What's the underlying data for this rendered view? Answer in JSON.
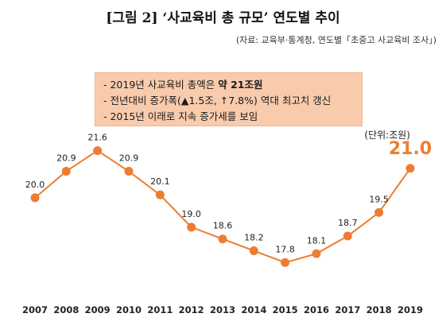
{
  "title": "[그림 2] ‘사교육비 총 규모’ 연도별 추이",
  "source": "(자료: 교육부·통계청, 연도별「초중고 사교육비 조사」)",
  "notes": {
    "line1_prefix": "- 2019년 사교육비 총액은 ",
    "line1_bold": "약 21조원",
    "line2": "- 전년대비 증가폭(▲1.5조, ↑7.8%) 역대 최고치 갱신",
    "line3": "- 2015년 이래로 지속 증가세를 보임"
  },
  "unit": "(단위:조원)",
  "colors": {
    "series": "#ed7d31",
    "note_bg": "#f8cbad"
  },
  "chart_data": {
    "type": "line",
    "categories": [
      "2007",
      "2008",
      "2009",
      "2010",
      "2011",
      "2012",
      "2013",
      "2014",
      "2015",
      "2016",
      "2017",
      "2018",
      "2019"
    ],
    "values": [
      20.0,
      20.9,
      21.6,
      20.9,
      20.1,
      19.0,
      18.6,
      18.2,
      17.8,
      18.1,
      18.7,
      19.5,
      21.0
    ],
    "data_labels": [
      "20.0",
      "20.9",
      "21.6",
      "20.9",
      "20.1",
      "19.0",
      "18.6",
      "18.2",
      "17.8",
      "18.1",
      "18.7",
      "19.5",
      "21.0"
    ],
    "ylim": [
      17.0,
      22.4
    ],
    "grid": false,
    "legend": "none"
  }
}
